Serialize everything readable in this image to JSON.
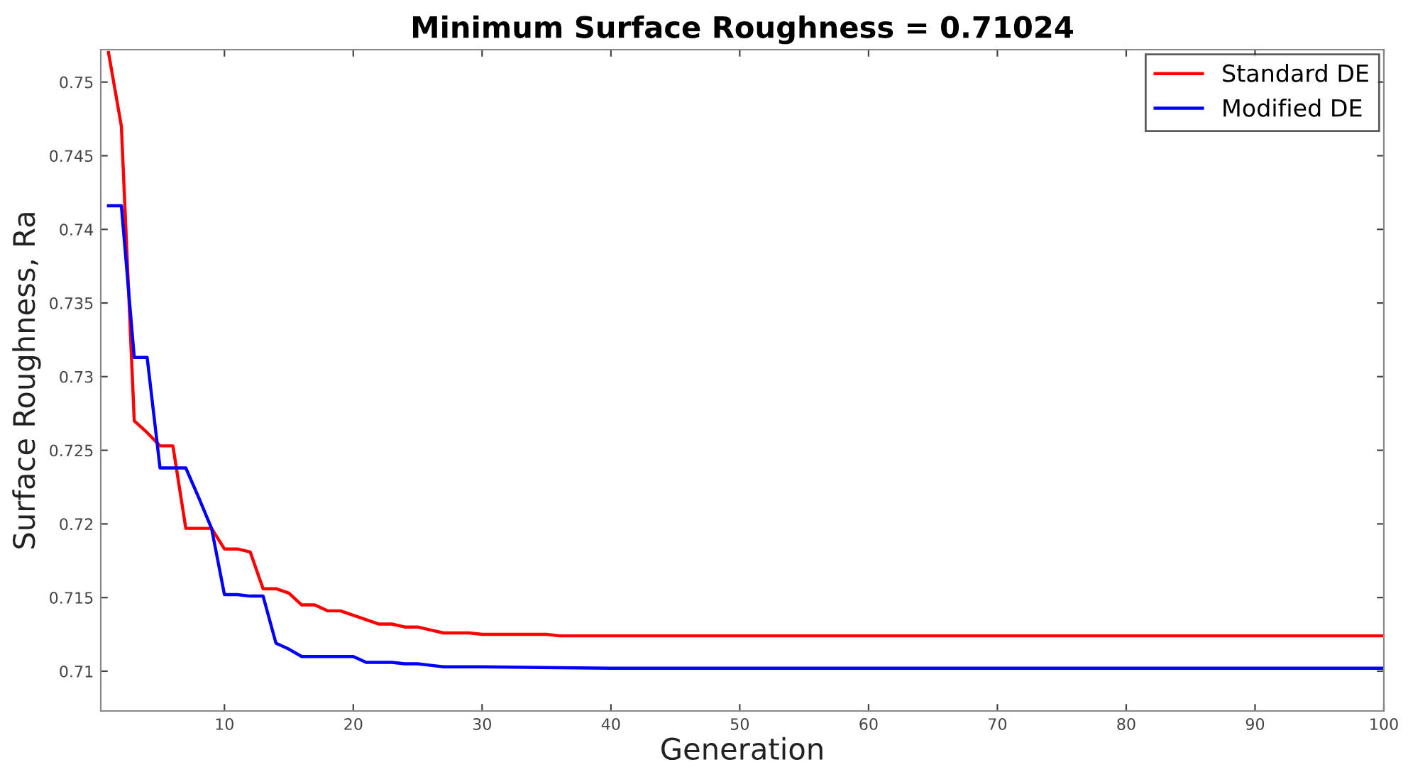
{
  "chart_data": {
    "type": "line",
    "title": "Minimum Surface Roughness = 0.71024",
    "xlabel": "Generation",
    "ylabel": "Surface Roughness, Ra",
    "xlim": [
      0.4,
      100
    ],
    "ylim": [
      0.7073,
      0.7522
    ],
    "xticks": [
      10,
      20,
      30,
      40,
      50,
      60,
      70,
      80,
      90,
      100
    ],
    "yticks": [
      0.71,
      0.715,
      0.72,
      0.725,
      0.73,
      0.735,
      0.74,
      0.745,
      0.75
    ],
    "grid": false,
    "legend": "top right",
    "line_style": "solid",
    "marker": "none",
    "series": [
      {
        "name": "Standard DE",
        "color": "#ff0000",
        "x": [
          1,
          2,
          3,
          4,
          5,
          6,
          7,
          8,
          9,
          10,
          11,
          12,
          13,
          14,
          15,
          16,
          17,
          18,
          19,
          20,
          21,
          22,
          23,
          24,
          25,
          26,
          27,
          28,
          29,
          30,
          35,
          36,
          100
        ],
        "values": [
          0.752,
          0.747,
          0.727,
          0.7262,
          0.7253,
          0.7253,
          0.7197,
          0.7197,
          0.7197,
          0.7183,
          0.7183,
          0.7181,
          0.7156,
          0.7156,
          0.7153,
          0.7145,
          0.7145,
          0.7141,
          0.7141,
          0.7138,
          0.7135,
          0.7132,
          0.7132,
          0.713,
          0.713,
          0.7128,
          0.7126,
          0.7126,
          0.7126,
          0.7125,
          0.7125,
          0.7124,
          0.7124
        ]
      },
      {
        "name": "Modified DE",
        "color": "#0000ff",
        "x": [
          1,
          2,
          3,
          4,
          5,
          6,
          7,
          8,
          9,
          10,
          11,
          12,
          13,
          14,
          15,
          16,
          17,
          18,
          19,
          20,
          21,
          22,
          23,
          24,
          25,
          26,
          27,
          30,
          40,
          100
        ],
        "values": [
          0.7416,
          0.7416,
          0.7313,
          0.7313,
          0.7238,
          0.7238,
          0.7238,
          0.7218,
          0.7197,
          0.7152,
          0.7152,
          0.7151,
          0.7151,
          0.7119,
          0.7115,
          0.711,
          0.711,
          0.711,
          0.711,
          0.711,
          0.7106,
          0.7106,
          0.7106,
          0.7105,
          0.7105,
          0.7104,
          0.7103,
          0.7103,
          0.7102,
          0.7102
        ]
      }
    ]
  }
}
